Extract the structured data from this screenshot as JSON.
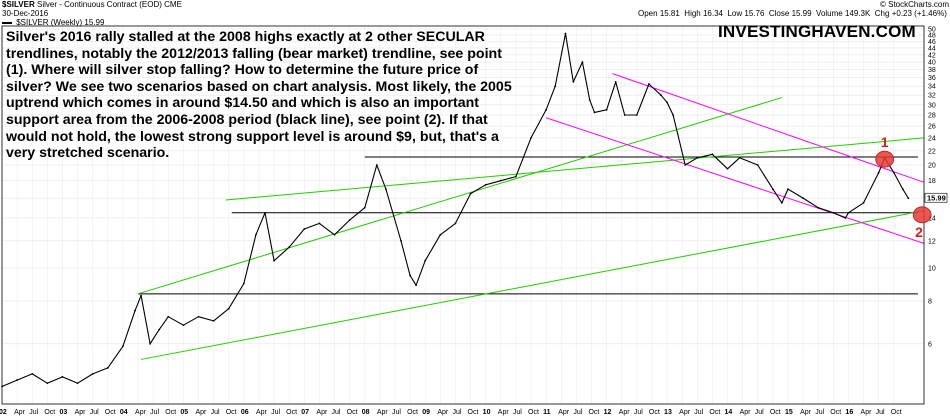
{
  "header": {
    "symbol": "$SILVER",
    "instrument": "Silver - Continuous Contract (EOD)",
    "exchange": "CME",
    "date": "30-Dec-2016",
    "legend": "$SILVER (Weekly) 15.99",
    "open_label": "Open",
    "open": "15.81",
    "high_label": "High",
    "high": "16.34",
    "low_label": "Low",
    "low": "15.76",
    "close_label": "Close",
    "close": "15.99",
    "volume_label": "Volume",
    "volume": "149.3K",
    "chg_label": "Chg",
    "chg": "+0.23 (+1.46%)",
    "credit": "© StockCharts.com"
  },
  "annotation_text": "Silver's 2016 rally stalled at the 2008 highs exactly at 2 other SECULAR trendlines, notably the 2012/2013 falling (bear market) trendline, see point (1). Where will silver stop falling? How to determine the future price of silver? We see two scenarios based on chart analysis. Most likely, the 2005 uptrend which comes in around $14.50 and which is also an important support area from the 2006-2008 period (black line), see point (2). If that would not hold, the lowest strong support level is around $9, but, that's a very stretched scenario.",
  "brand": "INVESTINGHAVEN.COM",
  "chart_data": {
    "type": "line",
    "title": "$SILVER (Weekly)",
    "scale": "log",
    "ylim": [
      4,
      51
    ],
    "y_ticks": [
      6,
      8,
      10,
      12,
      14,
      16,
      18,
      20,
      22,
      24,
      26,
      28,
      30,
      32,
      34,
      36,
      38,
      40,
      42,
      44,
      46,
      48,
      50
    ],
    "x_range": [
      2002.0,
      2017.25
    ],
    "x_ticks": [
      {
        "t": 2002.0,
        "label": "02",
        "year": true
      },
      {
        "t": 2002.25,
        "label": "Apr"
      },
      {
        "t": 2002.5,
        "label": "Jul"
      },
      {
        "t": 2002.75,
        "label": "Oct"
      },
      {
        "t": 2003.0,
        "label": "03",
        "year": true
      },
      {
        "t": 2003.25,
        "label": "Apr"
      },
      {
        "t": 2003.5,
        "label": "Jul"
      },
      {
        "t": 2003.75,
        "label": "Oct"
      },
      {
        "t": 2004.0,
        "label": "04",
        "year": true
      },
      {
        "t": 2004.25,
        "label": "Apr"
      },
      {
        "t": 2004.5,
        "label": "Jul"
      },
      {
        "t": 2004.75,
        "label": "Oct"
      },
      {
        "t": 2005.0,
        "label": "05",
        "year": true
      },
      {
        "t": 2005.25,
        "label": "Apr"
      },
      {
        "t": 2005.5,
        "label": "Jul"
      },
      {
        "t": 2005.75,
        "label": "Oct"
      },
      {
        "t": 2006.0,
        "label": "06",
        "year": true
      },
      {
        "t": 2006.25,
        "label": "Apr"
      },
      {
        "t": 2006.5,
        "label": "Jul"
      },
      {
        "t": 2006.75,
        "label": "Oct"
      },
      {
        "t": 2007.0,
        "label": "07",
        "year": true
      },
      {
        "t": 2007.25,
        "label": "Apr"
      },
      {
        "t": 2007.5,
        "label": "Jul"
      },
      {
        "t": 2007.75,
        "label": "Oct"
      },
      {
        "t": 2008.0,
        "label": "08",
        "year": true
      },
      {
        "t": 2008.25,
        "label": "Apr"
      },
      {
        "t": 2008.5,
        "label": "Jul"
      },
      {
        "t": 2008.75,
        "label": "Oct"
      },
      {
        "t": 2009.0,
        "label": "09",
        "year": true
      },
      {
        "t": 2009.25,
        "label": "Apr"
      },
      {
        "t": 2009.5,
        "label": "Jul"
      },
      {
        "t": 2009.75,
        "label": "Oct"
      },
      {
        "t": 2010.0,
        "label": "10",
        "year": true
      },
      {
        "t": 2010.25,
        "label": "Apr"
      },
      {
        "t": 2010.5,
        "label": "Jul"
      },
      {
        "t": 2010.75,
        "label": "Oct"
      },
      {
        "t": 2011.0,
        "label": "11",
        "year": true
      },
      {
        "t": 2011.25,
        "label": "Apr"
      },
      {
        "t": 2011.5,
        "label": "Jul"
      },
      {
        "t": 2011.75,
        "label": "Oct"
      },
      {
        "t": 2012.0,
        "label": "12",
        "year": true
      },
      {
        "t": 2012.25,
        "label": "Apr"
      },
      {
        "t": 2012.5,
        "label": "Jul"
      },
      {
        "t": 2012.75,
        "label": "Oct"
      },
      {
        "t": 2013.0,
        "label": "13",
        "year": true
      },
      {
        "t": 2013.25,
        "label": "Apr"
      },
      {
        "t": 2013.5,
        "label": "Jul"
      },
      {
        "t": 2013.75,
        "label": "Oct"
      },
      {
        "t": 2014.0,
        "label": "14",
        "year": true
      },
      {
        "t": 2014.25,
        "label": "Apr"
      },
      {
        "t": 2014.5,
        "label": "Jul"
      },
      {
        "t": 2014.75,
        "label": "Oct"
      },
      {
        "t": 2015.0,
        "label": "15",
        "year": true
      },
      {
        "t": 2015.25,
        "label": "Apr"
      },
      {
        "t": 2015.5,
        "label": "Jul"
      },
      {
        "t": 2015.75,
        "label": "Oct"
      },
      {
        "t": 2016.0,
        "label": "16",
        "year": true
      },
      {
        "t": 2016.25,
        "label": "Apr"
      },
      {
        "t": 2016.5,
        "label": "Jul"
      },
      {
        "t": 2016.75,
        "label": "Oct"
      }
    ],
    "series": [
      {
        "values_x": [
          2002.0,
          2002.25,
          2002.5,
          2002.75,
          2003.0,
          2003.25,
          2003.5,
          2003.75,
          2004.0,
          2004.2,
          2004.3,
          2004.45,
          2004.6,
          2004.75,
          2005.0,
          2005.25,
          2005.5,
          2005.75,
          2006.0,
          2006.2,
          2006.35,
          2006.5,
          2006.75,
          2007.0,
          2007.25,
          2007.5,
          2007.75,
          2008.0,
          2008.2,
          2008.35,
          2008.6,
          2008.75,
          2008.85,
          2009.0,
          2009.25,
          2009.5,
          2009.75,
          2010.0,
          2010.25,
          2010.5,
          2010.75,
          2011.0,
          2011.15,
          2011.32,
          2011.45,
          2011.6,
          2011.72,
          2011.8,
          2012.0,
          2012.15,
          2012.3,
          2012.5,
          2012.7,
          2012.9,
          2013.0,
          2013.1,
          2013.3,
          2013.5,
          2013.75,
          2014.0,
          2014.2,
          2014.5,
          2014.75,
          2014.9,
          2015.0,
          2015.25,
          2015.5,
          2015.75,
          2015.95,
          2016.0,
          2016.25,
          2016.5,
          2016.6,
          2016.75,
          2016.9,
          2016.99
        ],
        "values_y": [
          4.5,
          4.7,
          4.9,
          4.6,
          4.8,
          4.6,
          4.9,
          5.1,
          5.9,
          7.5,
          8.3,
          6.0,
          6.6,
          7.2,
          6.8,
          7.2,
          7.0,
          7.6,
          9.0,
          12.5,
          14.5,
          10.5,
          11.5,
          13.0,
          13.5,
          12.5,
          13.8,
          15.0,
          20.0,
          17.0,
          12.0,
          9.5,
          8.9,
          10.5,
          12.5,
          13.5,
          16.5,
          17.5,
          18.0,
          18.5,
          24.0,
          29.0,
          34.0,
          48.5,
          35.0,
          40.0,
          31.0,
          28.5,
          29.0,
          35.0,
          28.0,
          28.0,
          34.5,
          32.0,
          30.5,
          28.0,
          20.0,
          21.0,
          21.5,
          19.5,
          21.0,
          20.0,
          17.0,
          15.5,
          17.0,
          16.0,
          15.0,
          14.5,
          14.0,
          14.5,
          15.5,
          19.0,
          21.0,
          19.0,
          17.0,
          15.99
        ]
      }
    ],
    "trendlines": [
      {
        "kind": "support",
        "color": "#000000",
        "p1": [
          2004.25,
          8.4
        ],
        "p2": [
          2017.15,
          8.4
        ]
      },
      {
        "kind": "support",
        "color": "#000000",
        "p1": [
          2005.8,
          14.5
        ],
        "p2": [
          2017.15,
          14.5
        ]
      },
      {
        "kind": "support",
        "color": "#000000",
        "p1": [
          2008.0,
          21.1
        ],
        "p2": [
          2017.15,
          21.1
        ]
      },
      {
        "kind": "uptrend",
        "color": "#22cc00",
        "p1": [
          2004.25,
          8.4
        ],
        "p2": [
          2014.9,
          31.5
        ]
      },
      {
        "kind": "uptrend",
        "color": "#22cc00",
        "p1": [
          2004.3,
          5.4
        ],
        "p2": [
          2017.25,
          14.7
        ]
      },
      {
        "kind": "uptrend",
        "color": "#22cc00",
        "p1": [
          2005.7,
          15.8
        ],
        "p2": [
          2017.25,
          24.0
        ]
      },
      {
        "kind": "downtrend",
        "color": "#ff00ff",
        "p1": [
          2012.1,
          37.0
        ],
        "p2": [
          2017.25,
          17.8
        ]
      },
      {
        "kind": "downtrend",
        "color": "#ff00ff",
        "p1": [
          2011.0,
          27.5
        ],
        "p2": [
          2017.25,
          11.8
        ]
      }
    ],
    "points": [
      {
        "label": "1",
        "x": 2016.6,
        "y": 20.8,
        "color": "#e53935"
      },
      {
        "label": "2",
        "x": 2017.22,
        "y": 14.3,
        "color": "#e53935"
      }
    ],
    "last_price_label": "15.99"
  }
}
